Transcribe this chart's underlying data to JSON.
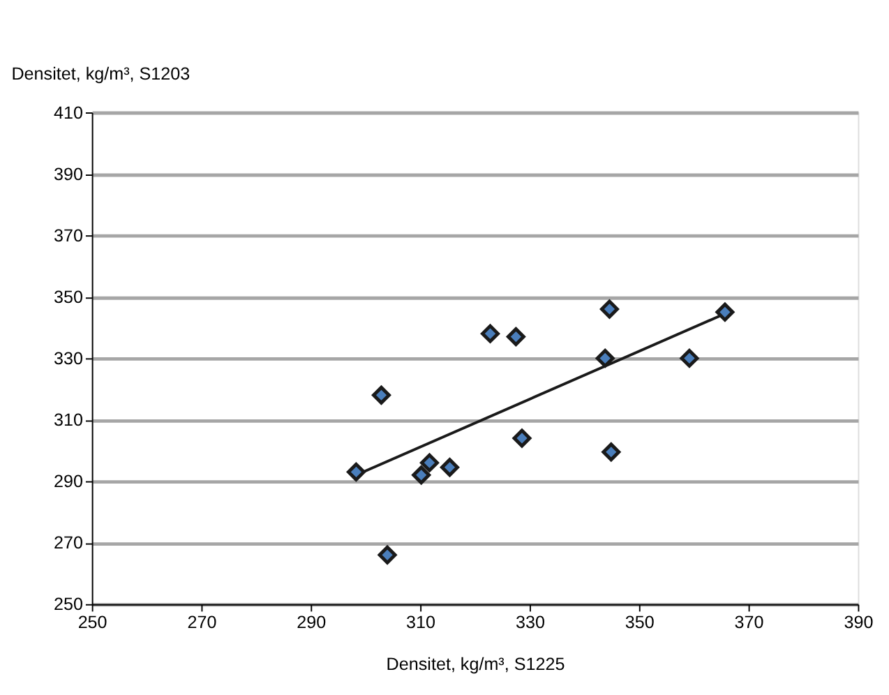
{
  "chart_data": {
    "type": "scatter",
    "xlabel": "Densitet, kg/m³, S1225",
    "ylabel": "Densitet, kg/m³, S1203",
    "xlim": [
      250,
      390
    ],
    "xticks": [
      250,
      270,
      290,
      310,
      330,
      350,
      370,
      390
    ],
    "ylim": [
      250,
      410
    ],
    "yticks": [
      250,
      270,
      290,
      310,
      330,
      350,
      370,
      390,
      410
    ],
    "grid": "y",
    "legend": false,
    "series": [
      {
        "marker": "diamond",
        "color": "#4a7ebb",
        "x": [
          298.3,
          302.9,
          304.0,
          310.2,
          311.7,
          315.4,
          322.8,
          327.5,
          328.6,
          343.8,
          344.6,
          344.9,
          359.2,
          365.7
        ],
        "values": [
          293,
          318,
          266,
          292,
          296,
          294.5,
          338,
          337,
          304,
          330,
          346,
          299.5,
          330,
          345
        ]
      },
      {
        "type": "line",
        "marker": "none",
        "color": "#1a1a1a",
        "x": [
          298.3,
          365.7
        ],
        "values": [
          292,
          344.5
        ]
      }
    ]
  }
}
